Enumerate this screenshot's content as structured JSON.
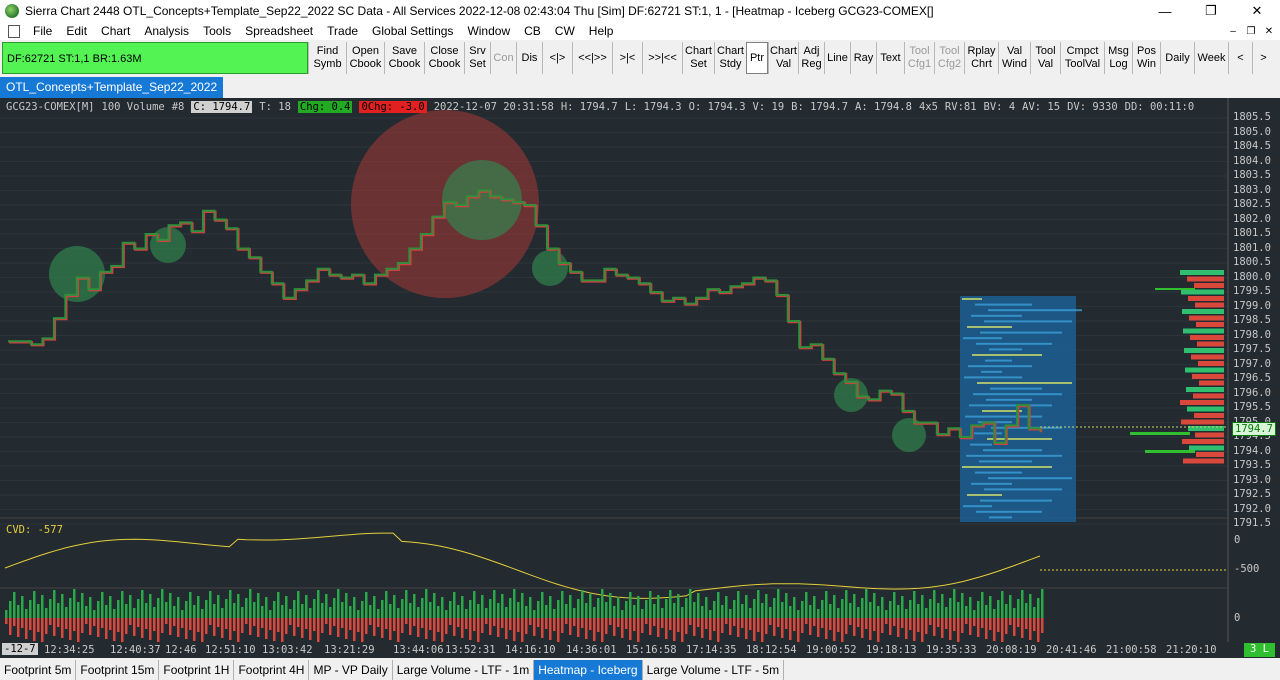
{
  "window": {
    "title": "Sierra Chart 2448 OTL_Concepts+Template_Sep22_2022  SC Data - All Services 2022-12-08  02:43:04 Thu [Sim]  DF:62721  ST:1, 1 - [Heatmap - Iceberg GCG23-COMEX[]",
    "minimize": "—",
    "maximize": "❐",
    "close": "✕"
  },
  "menu": {
    "items": [
      "File",
      "Edit",
      "Chart",
      "Analysis",
      "Tools",
      "Spreadsheet",
      "Trade",
      "Global Settings",
      "Window",
      "CB",
      "CW",
      "Help"
    ],
    "mdi": [
      "–",
      "❐",
      "✕"
    ]
  },
  "toolbar": {
    "status": "DF:62721  ST:1,1  BR:1.63M",
    "buttons": [
      {
        "label": "Find\nSymb",
        "state": "normal"
      },
      {
        "label": "Open\nCbook",
        "state": "normal"
      },
      {
        "label": "Save\nCbook",
        "state": "normal"
      },
      {
        "label": "Close\nCbook",
        "state": "normal"
      },
      {
        "label": "Srv\nSet",
        "state": "normal"
      },
      {
        "label": "Con",
        "state": "disabled"
      },
      {
        "label": "Dis",
        "state": "normal"
      },
      {
        "label": "<|>",
        "state": "normal"
      },
      {
        "label": "<<|>>",
        "state": "normal"
      },
      {
        "label": ">|<",
        "state": "normal"
      },
      {
        "label": ">>|<<",
        "state": "normal"
      },
      {
        "label": "Chart\nSet",
        "state": "normal"
      },
      {
        "label": "Chart\nStdy",
        "state": "normal"
      },
      {
        "label": "Ptr",
        "state": "active"
      },
      {
        "label": "Chart\nVal",
        "state": "normal"
      },
      {
        "label": "Adj\nReg",
        "state": "normal"
      },
      {
        "label": "Line",
        "state": "normal"
      },
      {
        "label": "Ray",
        "state": "normal"
      },
      {
        "label": "Text",
        "state": "normal"
      },
      {
        "label": "Tool\nCfg1",
        "state": "disabled"
      },
      {
        "label": "Tool\nCfg2",
        "state": "disabled"
      },
      {
        "label": "Rplay\nChrt",
        "state": "normal"
      },
      {
        "label": "Val\nWind",
        "state": "normal"
      },
      {
        "label": "Tool\nVal",
        "state": "normal"
      },
      {
        "label": "Cmpct\nToolVal",
        "state": "normal"
      },
      {
        "label": "Msg\nLog",
        "state": "normal"
      },
      {
        "label": "Pos\nWin",
        "state": "normal"
      },
      {
        "label": "Daily",
        "state": "normal"
      },
      {
        "label": "Week",
        "state": "normal"
      },
      {
        "label": "<",
        "state": "normal"
      },
      {
        "label": ">",
        "state": "normal"
      }
    ]
  },
  "chartbook_tab": "OTL_Concepts+Template_Sep22_2022",
  "header": {
    "symbol": "GCG23-COMEX[M]",
    "bar_type": "100 Volume",
    "chart_no": "#8",
    "close": "C: 1794.7",
    "trades": "T: 18",
    "chg": "Chg: 0.4",
    "pchg": "0Chg: -3.0",
    "datetime": "2022-12-07 20:31:58",
    "high": "H: 1794.7",
    "low": "L: 1794.3",
    "open": "O: 1794.3",
    "volume": "V: 19",
    "bid": "B: 1794.7",
    "ask": "A: 1794.8",
    "size": "4x5",
    "rv": "RV:81",
    "bv": "BV: 4",
    "av": "AV: 15",
    "dv": "DV: 9330",
    "dd": "DD: 00:11:0"
  },
  "price_axis": [
    "1805.5",
    "1805.0",
    "1804.5",
    "1804.0",
    "1803.5",
    "1803.0",
    "1802.5",
    "1802.0",
    "1801.5",
    "1801.0",
    "1800.5",
    "1800.0",
    "1799.5",
    "1799.0",
    "1798.5",
    "1798.0",
    "1797.5",
    "1797.0",
    "1796.5",
    "1796.0",
    "1795.5",
    "1795.0",
    "1794.5",
    "1794.0",
    "1793.5",
    "1793.0",
    "1792.5",
    "1792.0",
    "1791.5"
  ],
  "current_price": "1794.7",
  "cvd": {
    "label": "CVD: -577",
    "axis": [
      "0",
      "-500"
    ]
  },
  "volume_axis": [
    "0"
  ],
  "time_axis": {
    "first": "-12-7",
    "labels": [
      "12:34:25",
      "12:40:37",
      "12:46",
      "12:51:10",
      "13:03:42",
      "13:21:29",
      "13:44:06",
      "13:52:31",
      "14:16:10",
      "14:36:01",
      "15:16:58",
      "17:14:35",
      "18:12:54",
      "19:00:52",
      "19:18:13",
      "19:35:33",
      "20:08:19",
      "20:41:46",
      "21:00:58",
      "21:20:10"
    ]
  },
  "live_badge": "3 L",
  "bottom_tabs": [
    {
      "label": "Footprint 5m",
      "active": false
    },
    {
      "label": "Footprint 15m",
      "active": false
    },
    {
      "label": "Footprint 1H",
      "active": false
    },
    {
      "label": "Footprint 4H",
      "active": false
    },
    {
      "label": "MP - VP Daily",
      "active": false
    },
    {
      "label": "Large Volume - LTF - 1m",
      "active": false
    },
    {
      "label": "Heatmap - Iceberg",
      "active": true
    },
    {
      "label": "Large Volume - LTF - 5m",
      "active": false
    }
  ],
  "colors": {
    "background": "#232a30",
    "price_line": "#2f8f3a",
    "price_line_down": "#d04040",
    "cvd_line": "#e5cf3a",
    "vol_up": "#29a84a",
    "vol_down": "#d9483b",
    "heatmap": "#1c5f95"
  },
  "chart_data": {
    "type": "line",
    "price_series": [
      1797.8,
      1797.8,
      1797.7,
      1797.9,
      1798.6,
      1799.4,
      1800.0,
      1799.6,
      1800.2,
      1800.4,
      1801.2,
      1801.0,
      1801.5,
      1801.3,
      1801.8,
      1801.9,
      1801.6,
      1802.3,
      1802.0,
      1801.7,
      1801.0,
      1800.7,
      1800.2,
      1799.8,
      1799.3,
      1799.6,
      1799.9,
      1800.3,
      1800.1,
      1800.0,
      1800.1,
      1799.8,
      1800.1,
      1800.3,
      1800.5,
      1801.0,
      1801.5,
      1802.1,
      1802.6,
      1802.5,
      1802.8,
      1803.0,
      1802.8,
      1802.7,
      1802.6,
      1802.5,
      1801.8,
      1801.0,
      1800.5,
      1800.2,
      1799.9,
      1799.9,
      1800.3,
      1800.1,
      1800.0,
      1799.8,
      1799.5,
      1799.2,
      1799.3,
      1799.1,
      1799.3,
      1799.6,
      1799.5,
      1799.7,
      1799.8,
      1800.0,
      1799.9,
      1799.4,
      1798.5,
      1797.6,
      1797.7,
      1797.2,
      1796.7,
      1796.4,
      1795.9,
      1795.8,
      1796.1,
      1796.0,
      1795.4,
      1795.0,
      1795.0,
      1794.6,
      1794.8,
      1794.5,
      1794.9,
      1795.0,
      1794.3,
      1794.9,
      1795.6,
      1794.8,
      1794.7
    ]
  }
}
